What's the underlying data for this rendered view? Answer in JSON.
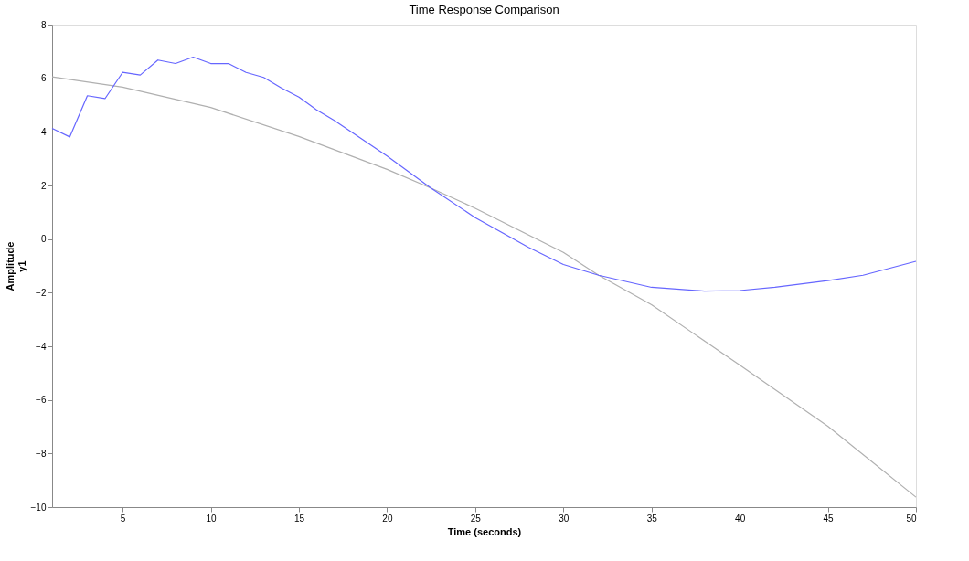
{
  "chart_data": {
    "type": "line",
    "title": "Time Response Comparison",
    "xlabel": "Time (seconds)",
    "ylabel": "Amplitude\ny1",
    "xlim": [
      1,
      50
    ],
    "xticks": [
      5,
      10,
      15,
      20,
      25,
      30,
      35,
      40,
      45,
      50
    ],
    "ylim": [
      -10,
      8
    ],
    "yticks": [
      -10,
      -8,
      -6,
      -4,
      -2,
      0,
      2,
      4,
      6,
      8
    ],
    "grid": false,
    "legend": false,
    "marker": "none",
    "line_style": "solid",
    "series": [
      {
        "color": "#b0b0b0",
        "x": [
          1,
          5,
          10,
          15,
          20,
          22.5,
          25,
          30,
          32,
          35,
          40,
          45,
          50
        ],
        "values": [
          6.05,
          5.67,
          4.91,
          3.83,
          2.6,
          1.9,
          1.15,
          -0.5,
          -1.35,
          -2.45,
          -4.7,
          -6.98,
          -9.63
        ]
      },
      {
        "color": "#6666ff",
        "x": [
          1,
          2,
          3,
          4,
          5,
          6,
          7,
          8,
          9,
          10,
          11,
          12,
          13,
          14,
          15,
          16,
          17,
          20,
          22.5,
          25,
          28,
          30,
          32,
          35,
          38,
          40,
          42,
          45,
          47,
          50
        ],
        "values": [
          4.13,
          3.81,
          5.35,
          5.24,
          6.22,
          6.12,
          6.68,
          6.55,
          6.79,
          6.55,
          6.55,
          6.22,
          6.03,
          5.64,
          5.3,
          4.82,
          4.43,
          3.1,
          1.9,
          0.8,
          -0.3,
          -0.95,
          -1.35,
          -1.8,
          -1.94,
          -1.92,
          -1.8,
          -1.55,
          -1.35,
          -0.83
        ]
      }
    ]
  }
}
